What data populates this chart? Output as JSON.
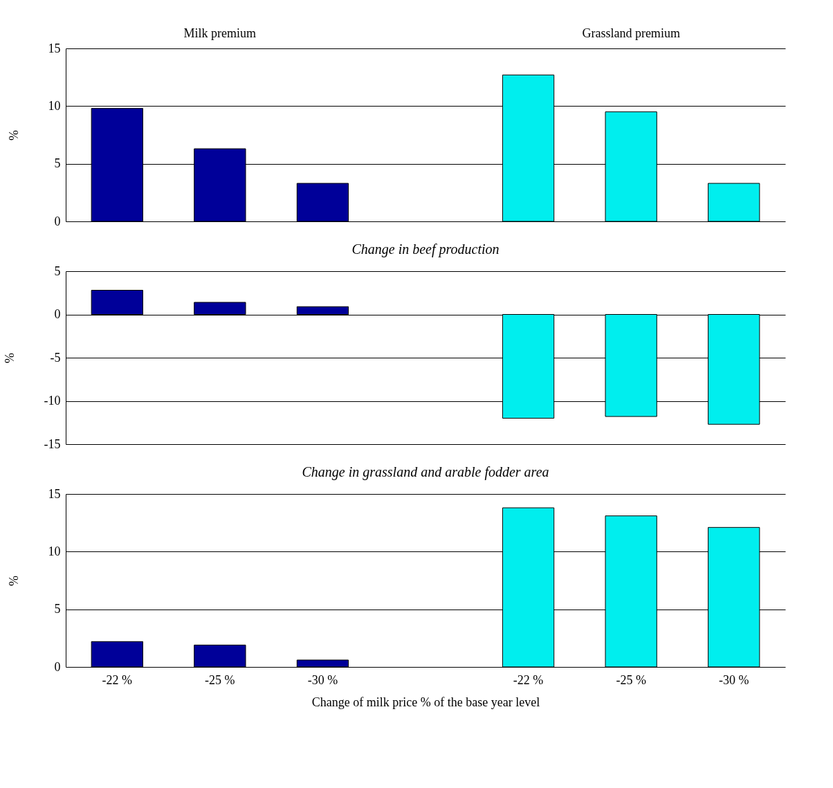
{
  "chart_data": [
    {
      "type": "bar",
      "ylabel": "%",
      "annotations": [
        "Milk premium",
        "Grassland premium"
      ],
      "categories": [
        null,
        null,
        null,
        null,
        null,
        null,
        null
      ],
      "series": [
        {
          "color": "#000099",
          "values": [
            9.8,
            6.3,
            3.3,
            null,
            null,
            null,
            null
          ]
        },
        {
          "color": "#00eeee",
          "values": [
            null,
            null,
            null,
            null,
            12.7,
            9.5,
            3.3
          ]
        }
      ],
      "ylim": [
        0,
        15
      ],
      "yticks": [
        0,
        5,
        10,
        15
      ],
      "grid": "y",
      "legend": false,
      "tick_labels": "y"
    },
    {
      "type": "bar",
      "title": "Change in beef production",
      "ylabel": "%",
      "categories": [
        null,
        null,
        null,
        null,
        null,
        null,
        null
      ],
      "series": [
        {
          "color": "#000099",
          "values": [
            2.8,
            1.4,
            0.9,
            null,
            null,
            null,
            null
          ]
        },
        {
          "color": "#00eeee",
          "values": [
            null,
            null,
            null,
            null,
            -12.0,
            -11.8,
            -12.7
          ]
        }
      ],
      "ylim": [
        -15,
        5
      ],
      "yticks": [
        -15,
        -10,
        -5,
        0,
        5
      ],
      "grid": "y",
      "legend": false,
      "tick_labels": "y"
    },
    {
      "type": "bar",
      "title": "Change in grassland and arable fodder area",
      "xlabel": "Change of milk price % of the base year level",
      "ylabel": "%",
      "categories": [
        "-22 %",
        "-25 %",
        "-30 %",
        null,
        "-22 %",
        "-25 %",
        "-30 %"
      ],
      "series": [
        {
          "color": "#000099",
          "values": [
            2.2,
            1.9,
            0.6,
            null,
            null,
            null,
            null
          ]
        },
        {
          "color": "#00eeee",
          "values": [
            null,
            null,
            null,
            null,
            13.8,
            13.1,
            12.1
          ]
        }
      ],
      "ylim": [
        0,
        15
      ],
      "yticks": [
        0,
        5,
        10,
        15
      ],
      "grid": "y",
      "legend": false
    }
  ]
}
